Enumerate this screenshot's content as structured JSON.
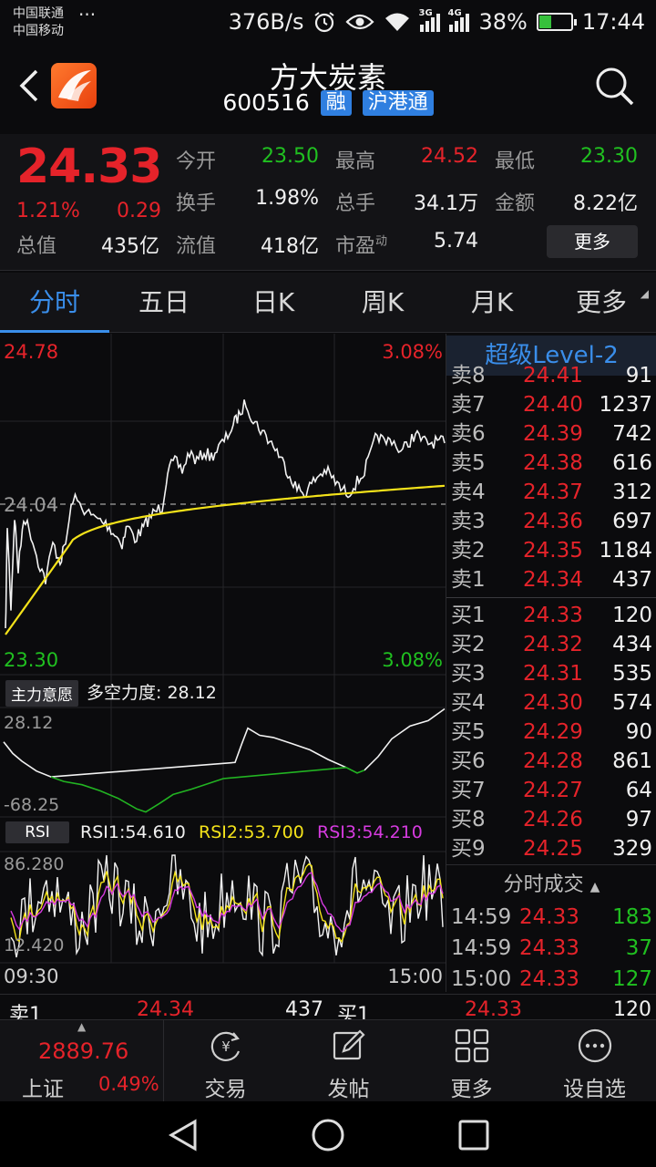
{
  "status_bar": {
    "carrier1": "中国联通",
    "carrier2": "中国移动",
    "dots": "···",
    "net_speed": "376B/s",
    "net3g": "3G",
    "net4g": "4G",
    "battery": "38%",
    "battery_level": 0.38,
    "time": "17:44",
    "icons": [
      "alarm-icon",
      "eye-icon",
      "wifi-icon",
      "signal-icon",
      "battery-icon"
    ]
  },
  "header": {
    "title": "方大炭素",
    "code": "600516",
    "tag1": "融",
    "tag2": "沪港通"
  },
  "quote": {
    "price": "24.33",
    "change_pct": "1.21%",
    "change_abs": "0.29",
    "open_label": "今开",
    "open": "23.50",
    "high_label": "最高",
    "high": "24.52",
    "low_label": "最低",
    "low": "23.30",
    "turnover_label": "换手",
    "turnover": "1.98%",
    "volume_label": "总手",
    "volume": "34.1万",
    "amount_label": "金额",
    "amount": "8.22亿",
    "mktcap_label": "总值",
    "mktcap": "435亿",
    "float_label": "流值",
    "float_cap": "418亿",
    "pe_label": "市盈",
    "pe_sup": "动",
    "pe": "5.74",
    "more": "更多"
  },
  "tabs": [
    "分时",
    "五日",
    "日K",
    "周K",
    "月K",
    "更多"
  ],
  "intraday": {
    "top_price": "24.78",
    "top_pct": "3.08%",
    "bottom_price": "23.30",
    "bottom_pct": "3.08%",
    "prev_close": "24.04",
    "time_start": "09:30",
    "time_end": "15:00"
  },
  "indicator1": {
    "name": "主力意愿",
    "label": "多空力度: 28.12",
    "max": "28.12",
    "min": "-68.25"
  },
  "rsi": {
    "name": "RSI",
    "rsi1": "RSI1:54.610",
    "rsi2": "RSI2:53.700",
    "rsi3": "RSI3:54.210",
    "max": "86.280",
    "min": "12.420"
  },
  "level2": {
    "title": "超级Level-2",
    "sell": [
      {
        "label": "卖8",
        "price": "24.41",
        "vol": "91"
      },
      {
        "label": "卖7",
        "price": "24.40",
        "vol": "1237"
      },
      {
        "label": "卖6",
        "price": "24.39",
        "vol": "742"
      },
      {
        "label": "卖5",
        "price": "24.38",
        "vol": "616"
      },
      {
        "label": "卖4",
        "price": "24.37",
        "vol": "312"
      },
      {
        "label": "卖3",
        "price": "24.36",
        "vol": "697"
      },
      {
        "label": "卖2",
        "price": "24.35",
        "vol": "1184"
      },
      {
        "label": "卖1",
        "price": "24.34",
        "vol": "437"
      }
    ],
    "buy": [
      {
        "label": "买1",
        "price": "24.33",
        "vol": "120"
      },
      {
        "label": "买2",
        "price": "24.32",
        "vol": "434"
      },
      {
        "label": "买3",
        "price": "24.31",
        "vol": "535"
      },
      {
        "label": "买4",
        "price": "24.30",
        "vol": "574"
      },
      {
        "label": "买5",
        "price": "24.29",
        "vol": "90"
      },
      {
        "label": "买6",
        "price": "24.28",
        "vol": "861"
      },
      {
        "label": "买7",
        "price": "24.27",
        "vol": "64"
      },
      {
        "label": "买8",
        "price": "24.26",
        "vol": "97"
      },
      {
        "label": "买9",
        "price": "24.25",
        "vol": "329"
      }
    ],
    "trades_title": "分时成交",
    "trades": [
      {
        "time": "14:59",
        "price": "24.33",
        "vol": "183"
      },
      {
        "time": "14:59",
        "price": "24.33",
        "vol": "37"
      },
      {
        "time": "15:00",
        "price": "24.33",
        "vol": "127"
      }
    ]
  },
  "strip": {
    "sell_label": "卖1",
    "sell_price": "24.34",
    "sell_vol": "437",
    "buy_label": "买1",
    "buy_price": "24.33",
    "buy_vol": "120"
  },
  "index": {
    "value": "2889.76",
    "name": "上证",
    "pct": "0.49%"
  },
  "bottom_nav": [
    "交易",
    "发帖",
    "更多",
    "设自选"
  ]
}
